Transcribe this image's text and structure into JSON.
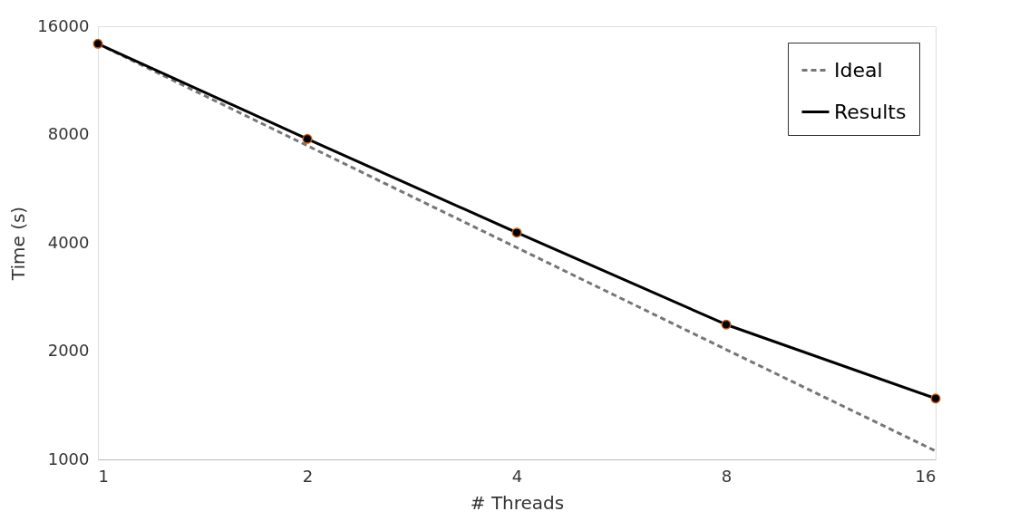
{
  "chart_data": {
    "type": "line",
    "xlabel": "# Threads",
    "ylabel": "Time (s)",
    "x": [
      1,
      2,
      4,
      8,
      16
    ],
    "series": [
      {
        "name": "Ideal",
        "color": "#767676",
        "line_style": "dashed",
        "marker": "none",
        "values": [
          14300,
          7450,
          3880,
          2020,
          1055
        ]
      },
      {
        "name": "Results",
        "color": "#000000",
        "line_style": "solid",
        "marker": "circle",
        "values": [
          14300,
          7780,
          4270,
          2370,
          1477
        ]
      }
    ],
    "log": "xy",
    "xlim": [
      1,
      16
    ],
    "xticks": [
      1,
      2,
      4,
      8,
      16
    ],
    "ylim": [
      1000,
      16000
    ],
    "yticks": [
      1000,
      2000,
      4000,
      8000,
      16000
    ],
    "grid": false,
    "legend": "top right"
  }
}
